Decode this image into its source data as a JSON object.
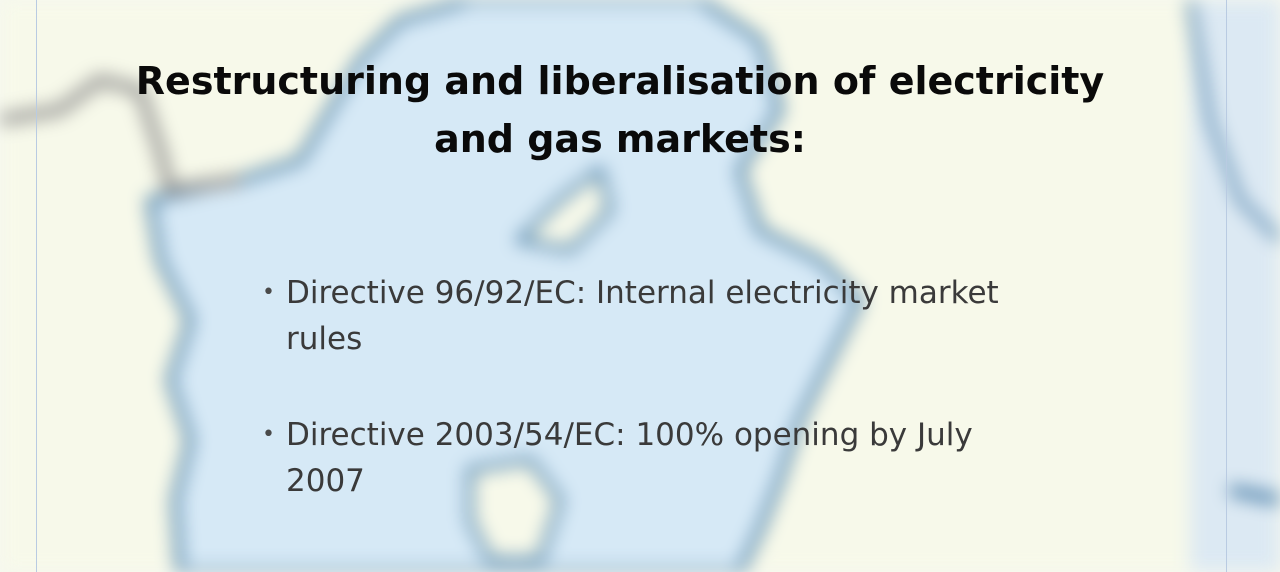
{
  "slide": {
    "title": "Restructuring and liberalisation of electricity and gas markets:",
    "bullets": [
      {
        "marker": "•",
        "text": "Directive 96/92/EC: Internal electricity market rules"
      },
      {
        "marker": "•",
        "text": "Directive 2003/54/EC: 100% opening by July 2007"
      }
    ]
  },
  "colors": {
    "land": "#f7f9ea",
    "water": "#d6e9f6",
    "border": "#1f5f92",
    "title_text": "#0a0a0a",
    "body_text": "#3a3a3a"
  }
}
